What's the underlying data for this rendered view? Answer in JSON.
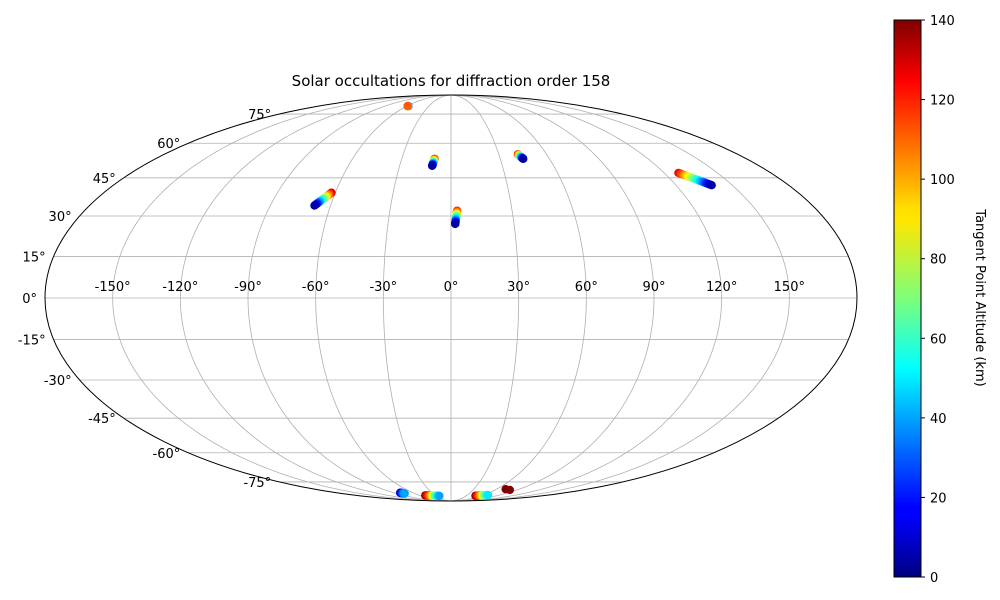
{
  "chart_data": {
    "type": "scatter",
    "projection": "mollweide",
    "title": "Solar occultations for diffraction order 158",
    "x_tick_labels": [
      "-150°",
      "-120°",
      "-90°",
      "-60°",
      "-30°",
      "0°",
      "30°",
      "60°",
      "90°",
      "120°",
      "150°"
    ],
    "x_ticks": [
      -150,
      -120,
      -90,
      -60,
      -30,
      0,
      30,
      60,
      90,
      120,
      150
    ],
    "y_tick_labels": [
      "-75°",
      "-60°",
      "-45°",
      "-30°",
      "-15°",
      "0°",
      "15°",
      "30°",
      "45°",
      "60°",
      "75°"
    ],
    "y_ticks": [
      -75,
      -60,
      -45,
      -30,
      -15,
      0,
      15,
      30,
      45,
      60,
      75
    ],
    "grid": true,
    "colorbar": {
      "label": "Tangent Point Altitude (km)",
      "min": 0,
      "max": 140,
      "ticks": [
        0,
        20,
        40,
        60,
        80,
        100,
        120,
        140
      ],
      "colormap": "jet"
    },
    "tracks": [
      {
        "lon_start": -58,
        "lat_start": 80,
        "lon_end": -59,
        "lat_end": 80,
        "alt_start": 0,
        "alt_end": 110
      },
      {
        "lon_start": -62,
        "lat_start": 39,
        "lon_end": -68,
        "lat_end": 34,
        "alt_start": 130,
        "alt_end": 5
      },
      {
        "lon_start": -10,
        "lat_start": 53,
        "lon_end": -11,
        "lat_end": 50,
        "alt_start": 120,
        "alt_end": 5
      },
      {
        "lon_start": 3,
        "lat_start": 32,
        "lon_end": 2,
        "lat_end": 27,
        "alt_start": 120,
        "alt_end": 5
      },
      {
        "lon_start": 42,
        "lat_start": 55,
        "lon_end": 44,
        "lat_end": 53,
        "alt_start": 120,
        "alt_end": 5
      },
      {
        "lon_start": 128,
        "lat_start": 47,
        "lon_end": 139,
        "lat_end": 42,
        "alt_start": 125,
        "alt_end": 5
      },
      {
        "lon_start": -80,
        "lat_start": -82,
        "lon_end": -76,
        "lat_end": -82.5,
        "alt_start": 10,
        "alt_end": 40
      },
      {
        "lon_start": -49,
        "lat_start": -84,
        "lon_end": -23,
        "lat_end": -84.4,
        "alt_start": 140,
        "alt_end": 40
      },
      {
        "lon_start": 48,
        "lat_start": -84.3,
        "lon_end": 68,
        "lat_end": -83.7,
        "alt_start": 140,
        "alt_end": 50
      },
      {
        "lon_start": 72,
        "lat_start": -79.5,
        "lon_end": 72,
        "lat_end": -79.5,
        "alt_start": 140,
        "alt_end": 140
      },
      {
        "lon_start": 80,
        "lat_start": -80,
        "lon_end": 80,
        "lat_end": -80,
        "alt_start": 140,
        "alt_end": 140
      }
    ]
  }
}
